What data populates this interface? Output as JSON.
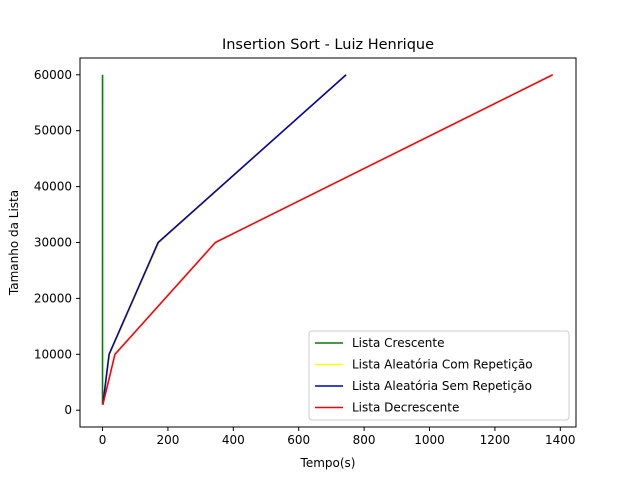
{
  "chart_data": {
    "type": "line",
    "title": "Insertion Sort - Luiz Henrique",
    "xlabel": "Tempo(s)",
    "ylabel": "Tamanho da Lista",
    "xlim": [
      -68.9,
      1448
    ],
    "ylim": [
      -3000,
      63000
    ],
    "xticks": [
      0,
      200,
      400,
      600,
      800,
      1000,
      1200,
      1400
    ],
    "yticks": [
      0,
      10000,
      20000,
      30000,
      40000,
      50000,
      60000
    ],
    "grid": false,
    "legend_position": "lower-right",
    "series": [
      {
        "name": "Lista Crescente",
        "color": "#008000",
        "points": [
          [
            0,
            1000
          ],
          [
            0.01,
            10000
          ],
          [
            0.03,
            30000
          ],
          [
            0.06,
            60000
          ]
        ]
      },
      {
        "name": "Lista Aleatória Com Repetição",
        "color": "#ffff00",
        "points": [
          [
            1,
            1000
          ],
          [
            22,
            10000
          ],
          [
            173,
            30000
          ],
          [
            745,
            60000
          ]
        ]
      },
      {
        "name": "Lista Aleatória Sem Repetição",
        "color": "#0000bf",
        "points": [
          [
            1,
            1000
          ],
          [
            20,
            10000
          ],
          [
            170,
            30000
          ],
          [
            745,
            60000
          ]
        ]
      },
      {
        "name": "Lista Decrescente",
        "color": "#ff0000",
        "points": [
          [
            1,
            1000
          ],
          [
            38,
            10000
          ],
          [
            345,
            30000
          ],
          [
            1377,
            60000
          ]
        ]
      }
    ]
  }
}
